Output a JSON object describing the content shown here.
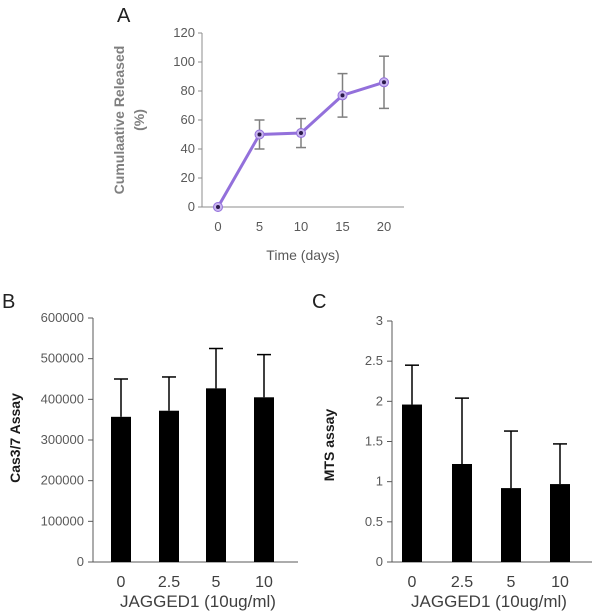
{
  "chart_data": [
    {
      "panel": "A",
      "type": "line",
      "xlabel": "Time (days)",
      "ylabel_line1": "Cumulaative Released",
      "ylabel_line2": "(%)",
      "ylim": [
        0,
        120
      ],
      "yticks": [
        0,
        20,
        40,
        60,
        80,
        100,
        120
      ],
      "x": [
        0,
        5,
        10,
        15,
        20
      ],
      "values": [
        0,
        50,
        51,
        77,
        86
      ],
      "error": [
        0,
        10,
        10,
        15,
        18
      ],
      "color": "#9370db",
      "grid": false
    },
    {
      "panel": "B",
      "type": "bar",
      "xlabel": "JAGGED1 (10ug/ml)",
      "ylabel": "Cas3/7 Assay",
      "ylim": [
        0,
        600000
      ],
      "yticks": [
        0,
        100000,
        200000,
        300000,
        400000,
        500000,
        600000
      ],
      "categories": [
        "0",
        "2.5",
        "5",
        "10"
      ],
      "values": [
        357000,
        372000,
        427000,
        405000
      ],
      "error": [
        93000,
        83000,
        98000,
        105000
      ],
      "color": "#000000",
      "grid": false
    },
    {
      "panel": "C",
      "type": "bar",
      "xlabel": "JAGGED1 (10ug/ml)",
      "ylabel": "MTS assay",
      "ylim": [
        0,
        3
      ],
      "yticks": [
        "0",
        "0.5",
        "1",
        "1.5",
        "2",
        "2.5",
        "3"
      ],
      "categories": [
        "0",
        "2.5",
        "5",
        "10"
      ],
      "values": [
        1.96,
        1.22,
        0.92,
        0.97
      ],
      "error": [
        0.49,
        0.82,
        0.71,
        0.5
      ],
      "color": "#000000",
      "grid": false
    }
  ]
}
